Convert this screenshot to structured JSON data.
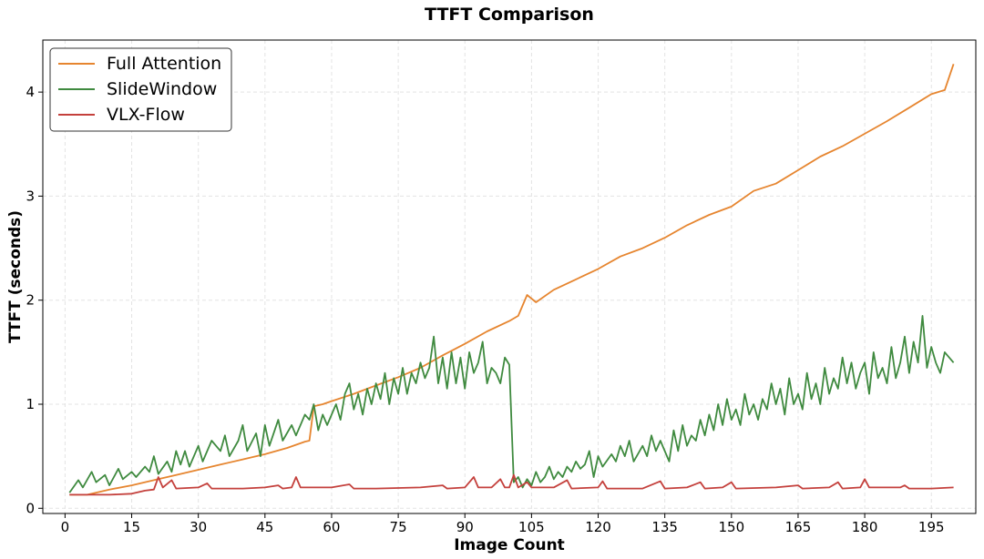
{
  "chart_data": {
    "type": "line",
    "title": "TTFT Comparison",
    "xlabel": "Image Count",
    "ylabel": "TTFT (seconds)",
    "xlim": [
      -5,
      205
    ],
    "ylim": [
      -0.05,
      4.5
    ],
    "xticks": [
      0,
      15,
      30,
      45,
      60,
      75,
      90,
      105,
      120,
      135,
      150,
      165,
      180,
      195
    ],
    "yticks": [
      0,
      1,
      2,
      3,
      4
    ],
    "grid": true,
    "legend_position": "top-left",
    "series": [
      {
        "name": "Full Attention",
        "color": "#e6852f",
        "points": [
          [
            1,
            0.13
          ],
          [
            5,
            0.13
          ],
          [
            10,
            0.18
          ],
          [
            15,
            0.22
          ],
          [
            20,
            0.27
          ],
          [
            25,
            0.32
          ],
          [
            30,
            0.37
          ],
          [
            35,
            0.42
          ],
          [
            40,
            0.47
          ],
          [
            45,
            0.52
          ],
          [
            50,
            0.58
          ],
          [
            54,
            0.64
          ],
          [
            55,
            0.65
          ],
          [
            56,
            0.98
          ],
          [
            58,
            1.0
          ],
          [
            60,
            1.03
          ],
          [
            65,
            1.1
          ],
          [
            70,
            1.18
          ],
          [
            75,
            1.26
          ],
          [
            80,
            1.35
          ],
          [
            85,
            1.47
          ],
          [
            90,
            1.58
          ],
          [
            95,
            1.7
          ],
          [
            100,
            1.8
          ],
          [
            102,
            1.85
          ],
          [
            104,
            2.05
          ],
          [
            106,
            1.98
          ],
          [
            110,
            2.1
          ],
          [
            115,
            2.2
          ],
          [
            120,
            2.3
          ],
          [
            125,
            2.42
          ],
          [
            130,
            2.5
          ],
          [
            135,
            2.6
          ],
          [
            140,
            2.72
          ],
          [
            145,
            2.82
          ],
          [
            150,
            2.9
          ],
          [
            155,
            3.05
          ],
          [
            160,
            3.12
          ],
          [
            165,
            3.25
          ],
          [
            170,
            3.38
          ],
          [
            175,
            3.48
          ],
          [
            180,
            3.6
          ],
          [
            185,
            3.72
          ],
          [
            190,
            3.85
          ],
          [
            195,
            3.98
          ],
          [
            198,
            4.02
          ],
          [
            200,
            4.27
          ]
        ]
      },
      {
        "name": "SlideWindow",
        "color": "#3f8a3f",
        "points": [
          [
            1,
            0.15
          ],
          [
            3,
            0.27
          ],
          [
            4,
            0.2
          ],
          [
            6,
            0.35
          ],
          [
            7,
            0.25
          ],
          [
            9,
            0.32
          ],
          [
            10,
            0.22
          ],
          [
            11,
            0.3
          ],
          [
            12,
            0.38
          ],
          [
            13,
            0.28
          ],
          [
            15,
            0.35
          ],
          [
            16,
            0.3
          ],
          [
            18,
            0.4
          ],
          [
            19,
            0.35
          ],
          [
            20,
            0.5
          ],
          [
            21,
            0.33
          ],
          [
            23,
            0.45
          ],
          [
            24,
            0.35
          ],
          [
            25,
            0.55
          ],
          [
            26,
            0.42
          ],
          [
            27,
            0.55
          ],
          [
            28,
            0.4
          ],
          [
            30,
            0.6
          ],
          [
            31,
            0.45
          ],
          [
            33,
            0.65
          ],
          [
            35,
            0.55
          ],
          [
            36,
            0.7
          ],
          [
            37,
            0.5
          ],
          [
            39,
            0.65
          ],
          [
            40,
            0.8
          ],
          [
            41,
            0.55
          ],
          [
            43,
            0.72
          ],
          [
            44,
            0.5
          ],
          [
            45,
            0.8
          ],
          [
            46,
            0.6
          ],
          [
            48,
            0.85
          ],
          [
            49,
            0.65
          ],
          [
            51,
            0.8
          ],
          [
            52,
            0.7
          ],
          [
            54,
            0.9
          ],
          [
            55,
            0.85
          ],
          [
            56,
            1.0
          ],
          [
            57,
            0.75
          ],
          [
            58,
            0.9
          ],
          [
            59,
            0.8
          ],
          [
            61,
            1.0
          ],
          [
            62,
            0.85
          ],
          [
            63,
            1.1
          ],
          [
            64,
            1.2
          ],
          [
            65,
            0.95
          ],
          [
            66,
            1.1
          ],
          [
            67,
            0.9
          ],
          [
            68,
            1.15
          ],
          [
            69,
            1.0
          ],
          [
            70,
            1.2
          ],
          [
            71,
            1.05
          ],
          [
            72,
            1.3
          ],
          [
            73,
            1.0
          ],
          [
            74,
            1.25
          ],
          [
            75,
            1.1
          ],
          [
            76,
            1.35
          ],
          [
            77,
            1.1
          ],
          [
            78,
            1.3
          ],
          [
            79,
            1.2
          ],
          [
            80,
            1.4
          ],
          [
            81,
            1.25
          ],
          [
            82,
            1.35
          ],
          [
            83,
            1.65
          ],
          [
            84,
            1.2
          ],
          [
            85,
            1.45
          ],
          [
            86,
            1.15
          ],
          [
            87,
            1.5
          ],
          [
            88,
            1.2
          ],
          [
            89,
            1.45
          ],
          [
            90,
            1.15
          ],
          [
            91,
            1.5
          ],
          [
            92,
            1.3
          ],
          [
            93,
            1.4
          ],
          [
            94,
            1.6
          ],
          [
            95,
            1.2
          ],
          [
            96,
            1.35
          ],
          [
            97,
            1.3
          ],
          [
            98,
            1.2
          ],
          [
            99,
            1.45
          ],
          [
            100,
            1.38
          ],
          [
            101,
            0.25
          ],
          [
            102,
            0.3
          ],
          [
            103,
            0.2
          ],
          [
            104,
            0.28
          ],
          [
            105,
            0.22
          ],
          [
            106,
            0.35
          ],
          [
            107,
            0.25
          ],
          [
            108,
            0.3
          ],
          [
            109,
            0.4
          ],
          [
            110,
            0.28
          ],
          [
            111,
            0.35
          ],
          [
            112,
            0.3
          ],
          [
            113,
            0.4
          ],
          [
            114,
            0.35
          ],
          [
            115,
            0.45
          ],
          [
            116,
            0.38
          ],
          [
            117,
            0.42
          ],
          [
            118,
            0.55
          ],
          [
            119,
            0.3
          ],
          [
            120,
            0.5
          ],
          [
            121,
            0.4
          ],
          [
            123,
            0.52
          ],
          [
            124,
            0.45
          ],
          [
            125,
            0.6
          ],
          [
            126,
            0.5
          ],
          [
            127,
            0.65
          ],
          [
            128,
            0.45
          ],
          [
            130,
            0.6
          ],
          [
            131,
            0.5
          ],
          [
            132,
            0.7
          ],
          [
            133,
            0.55
          ],
          [
            134,
            0.65
          ],
          [
            136,
            0.45
          ],
          [
            137,
            0.75
          ],
          [
            138,
            0.55
          ],
          [
            139,
            0.8
          ],
          [
            140,
            0.6
          ],
          [
            141,
            0.7
          ],
          [
            142,
            0.65
          ],
          [
            143,
            0.85
          ],
          [
            144,
            0.7
          ],
          [
            145,
            0.9
          ],
          [
            146,
            0.75
          ],
          [
            147,
            1.0
          ],
          [
            148,
            0.8
          ],
          [
            149,
            1.05
          ],
          [
            150,
            0.85
          ],
          [
            151,
            0.95
          ],
          [
            152,
            0.8
          ],
          [
            153,
            1.1
          ],
          [
            154,
            0.9
          ],
          [
            155,
            1.0
          ],
          [
            156,
            0.85
          ],
          [
            157,
            1.05
          ],
          [
            158,
            0.95
          ],
          [
            159,
            1.2
          ],
          [
            160,
            1.0
          ],
          [
            161,
            1.15
          ],
          [
            162,
            0.9
          ],
          [
            163,
            1.25
          ],
          [
            164,
            1.0
          ],
          [
            165,
            1.1
          ],
          [
            166,
            0.95
          ],
          [
            167,
            1.3
          ],
          [
            168,
            1.05
          ],
          [
            169,
            1.2
          ],
          [
            170,
            1.0
          ],
          [
            171,
            1.35
          ],
          [
            172,
            1.1
          ],
          [
            173,
            1.25
          ],
          [
            174,
            1.15
          ],
          [
            175,
            1.45
          ],
          [
            176,
            1.2
          ],
          [
            177,
            1.4
          ],
          [
            178,
            1.15
          ],
          [
            179,
            1.3
          ],
          [
            180,
            1.4
          ],
          [
            181,
            1.1
          ],
          [
            182,
            1.5
          ],
          [
            183,
            1.25
          ],
          [
            184,
            1.35
          ],
          [
            185,
            1.2
          ],
          [
            186,
            1.55
          ],
          [
            187,
            1.25
          ],
          [
            188,
            1.4
          ],
          [
            189,
            1.65
          ],
          [
            190,
            1.3
          ],
          [
            191,
            1.6
          ],
          [
            192,
            1.4
          ],
          [
            193,
            1.85
          ],
          [
            194,
            1.35
          ],
          [
            195,
            1.55
          ],
          [
            196,
            1.4
          ],
          [
            197,
            1.3
          ],
          [
            198,
            1.5
          ],
          [
            199,
            1.45
          ],
          [
            200,
            1.4
          ]
        ]
      },
      {
        "name": "VLX-Flow",
        "color": "#c4403c",
        "points": [
          [
            1,
            0.13
          ],
          [
            10,
            0.13
          ],
          [
            15,
            0.14
          ],
          [
            18,
            0.17
          ],
          [
            20,
            0.18
          ],
          [
            21,
            0.3
          ],
          [
            22,
            0.2
          ],
          [
            24,
            0.27
          ],
          [
            25,
            0.19
          ],
          [
            30,
            0.2
          ],
          [
            32,
            0.24
          ],
          [
            33,
            0.19
          ],
          [
            40,
            0.19
          ],
          [
            45,
            0.2
          ],
          [
            48,
            0.22
          ],
          [
            49,
            0.19
          ],
          [
            51,
            0.2
          ],
          [
            52,
            0.3
          ],
          [
            53,
            0.2
          ],
          [
            60,
            0.2
          ],
          [
            64,
            0.23
          ],
          [
            65,
            0.19
          ],
          [
            70,
            0.19
          ],
          [
            80,
            0.2
          ],
          [
            85,
            0.22
          ],
          [
            86,
            0.19
          ],
          [
            90,
            0.2
          ],
          [
            92,
            0.3
          ],
          [
            93,
            0.2
          ],
          [
            96,
            0.2
          ],
          [
            98,
            0.28
          ],
          [
            99,
            0.2
          ],
          [
            100,
            0.2
          ],
          [
            101,
            0.32
          ],
          [
            102,
            0.2
          ],
          [
            104,
            0.25
          ],
          [
            105,
            0.2
          ],
          [
            110,
            0.2
          ],
          [
            113,
            0.27
          ],
          [
            114,
            0.19
          ],
          [
            120,
            0.2
          ],
          [
            121,
            0.26
          ],
          [
            122,
            0.19
          ],
          [
            130,
            0.19
          ],
          [
            134,
            0.26
          ],
          [
            135,
            0.19
          ],
          [
            140,
            0.2
          ],
          [
            143,
            0.25
          ],
          [
            144,
            0.19
          ],
          [
            148,
            0.2
          ],
          [
            150,
            0.25
          ],
          [
            151,
            0.19
          ],
          [
            160,
            0.2
          ],
          [
            165,
            0.22
          ],
          [
            166,
            0.19
          ],
          [
            172,
            0.2
          ],
          [
            174,
            0.25
          ],
          [
            175,
            0.19
          ],
          [
            179,
            0.2
          ],
          [
            180,
            0.28
          ],
          [
            181,
            0.2
          ],
          [
            188,
            0.2
          ],
          [
            189,
            0.22
          ],
          [
            190,
            0.19
          ],
          [
            195,
            0.19
          ],
          [
            200,
            0.2
          ]
        ]
      }
    ]
  }
}
